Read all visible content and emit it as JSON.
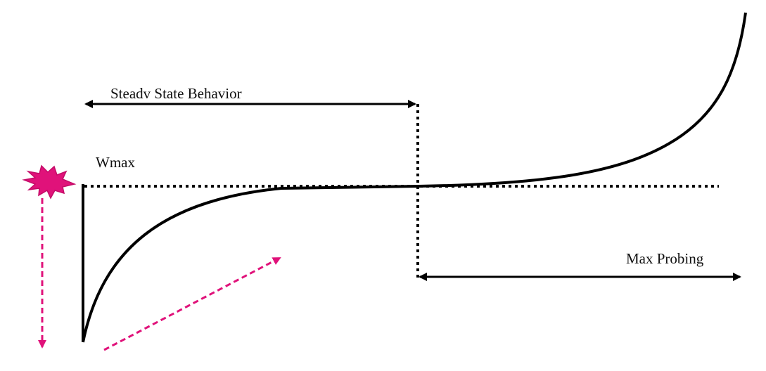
{
  "labels": {
    "steady_state": "Steadv State Behavior",
    "wmax": "Wmax",
    "max_probing": "Max Probing"
  },
  "colors": {
    "line": "#000000",
    "accent": "#e0127a",
    "text": "#111111"
  }
}
